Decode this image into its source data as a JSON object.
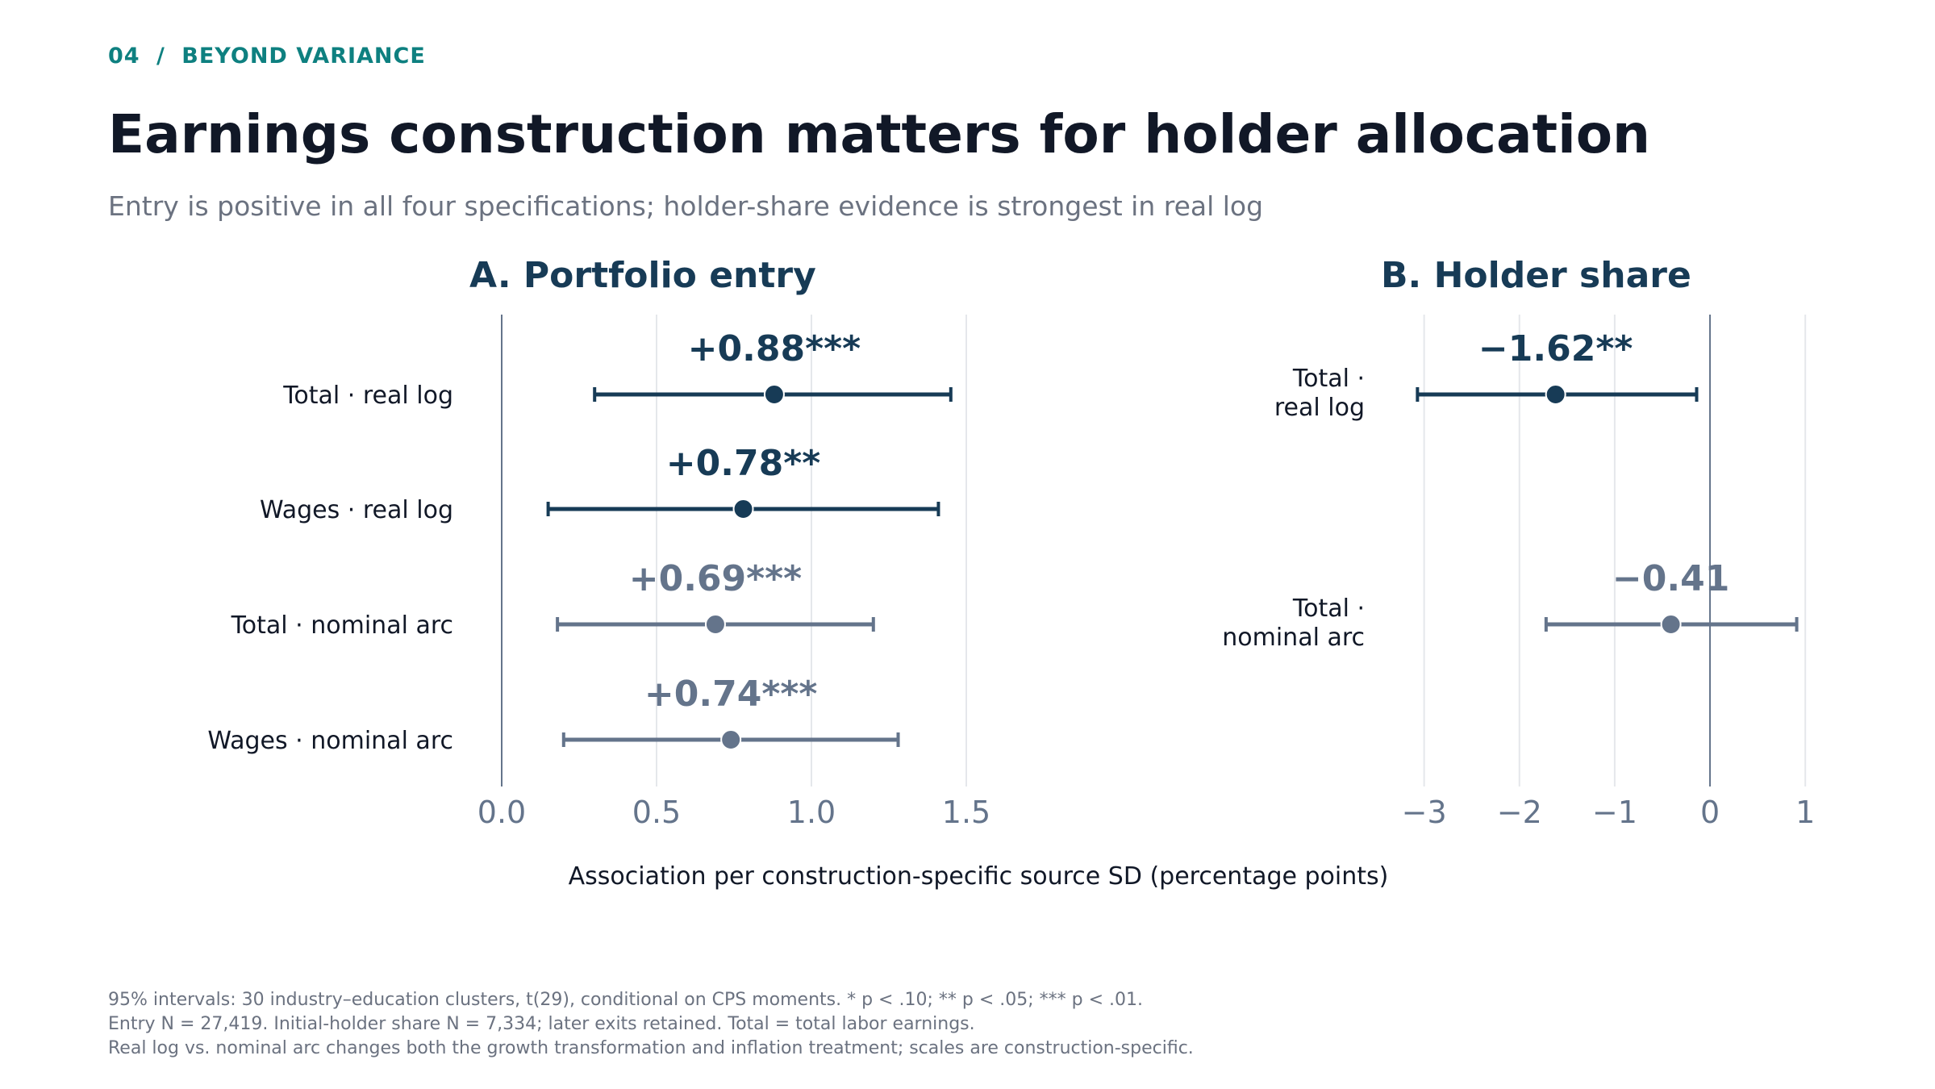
{
  "header": {
    "kicker_number": "04",
    "kicker_sep": "/",
    "kicker_text": "BEYOND VARIANCE",
    "title": "Earnings construction matters for holder allocation",
    "subtitle": "Entry is positive in all four specifications; holder-share evidence is strongest in real log"
  },
  "colors": {
    "accent": "#0e8080",
    "primary": "#173b56",
    "secondary": "#64748b",
    "grid": "#e5e7eb",
    "axis": "#64748b"
  },
  "chart_data": [
    {
      "type": "scatter",
      "title": "A. Portfolio entry",
      "xlim": [
        0.0,
        1.5
      ],
      "xticks": [
        "0.0",
        "0.5",
        "1.0",
        "1.5"
      ],
      "xtick_values": [
        0.0,
        0.5,
        1.0,
        1.5
      ],
      "grid": true,
      "series": [
        {
          "category": "Total · real log",
          "estimate": 0.88,
          "ci_low": 0.3,
          "ci_high": 1.45,
          "label": "+0.88***",
          "style": "primary"
        },
        {
          "category": "Wages · real log",
          "estimate": 0.78,
          "ci_low": 0.15,
          "ci_high": 1.41,
          "label": "+0.78**",
          "style": "primary"
        },
        {
          "category": "Total · nominal arc",
          "estimate": 0.69,
          "ci_low": 0.18,
          "ci_high": 1.2,
          "label": "+0.69***",
          "style": "secondary"
        },
        {
          "category": "Wages · nominal arc",
          "estimate": 0.74,
          "ci_low": 0.2,
          "ci_high": 1.28,
          "label": "+0.74***",
          "style": "secondary"
        }
      ]
    },
    {
      "type": "scatter",
      "title": "B. Holder share",
      "xlim": [
        -3.2,
        1.1
      ],
      "xticks": [
        "−3",
        "−2",
        "−1",
        "0",
        "1"
      ],
      "xtick_values": [
        -3,
        -2,
        -1,
        0,
        1
      ],
      "grid": true,
      "series": [
        {
          "category_lines": [
            "Total ·",
            "real log"
          ],
          "estimate": -1.62,
          "ci_low": -3.07,
          "ci_high": -0.14,
          "label": "−1.62**",
          "style": "primary"
        },
        {
          "category_lines": [
            "Total ·",
            "nominal arc"
          ],
          "estimate": -0.41,
          "ci_low": -1.72,
          "ci_high": 0.91,
          "label": "−0.41",
          "style": "secondary"
        }
      ]
    }
  ],
  "xlabel": "Association per construction-specific source SD (percentage points)",
  "footnotes": [
    "95% intervals: 30 industry–education clusters, t(29), conditional on CPS moments. * p < .10; ** p < .05; *** p < .01.",
    "Entry N = 27,419. Initial-holder share N = 7,334; later exits retained. Total = total labor earnings.",
    "Real log vs. nominal arc changes both the growth transformation and inflation treatment; scales are construction-specific."
  ]
}
